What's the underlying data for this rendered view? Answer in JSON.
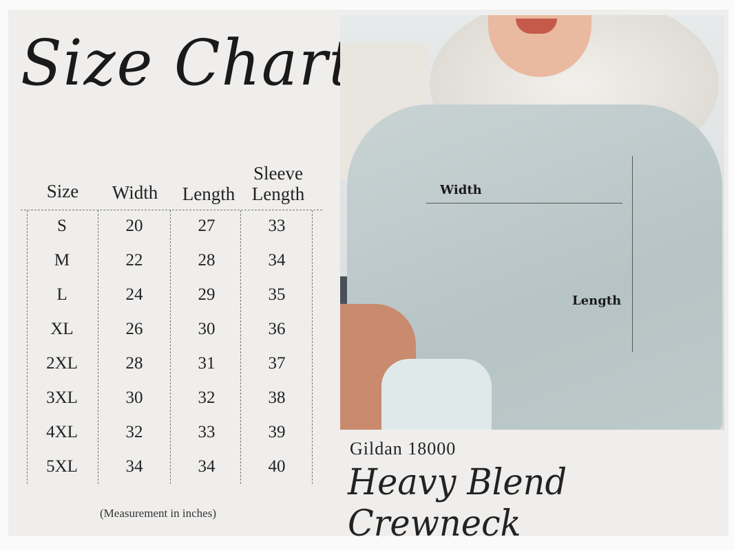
{
  "title": "Size Chart",
  "table": {
    "headers": [
      "Size",
      "Width",
      "Length",
      "Sleeve\nLength"
    ],
    "header_sleeve_line1": "Sleeve",
    "header_sleeve_line2": "Length",
    "rows": [
      [
        "S",
        "20",
        "27",
        "33"
      ],
      [
        "M",
        "22",
        "28",
        "34"
      ],
      [
        "L",
        "24",
        "29",
        "35"
      ],
      [
        "XL",
        "26",
        "30",
        "36"
      ],
      [
        "2XL",
        "28",
        "31",
        "37"
      ],
      [
        "3XL",
        "30",
        "32",
        "38"
      ],
      [
        "4XL",
        "32",
        "33",
        "39"
      ],
      [
        "5XL",
        "34",
        "34",
        "40"
      ]
    ]
  },
  "note": "(Measurement in inches)",
  "photo": {
    "width_label": "Width",
    "length_label": "Length"
  },
  "brand": "Gildan 18000",
  "product": "Heavy Blend Crewneck"
}
